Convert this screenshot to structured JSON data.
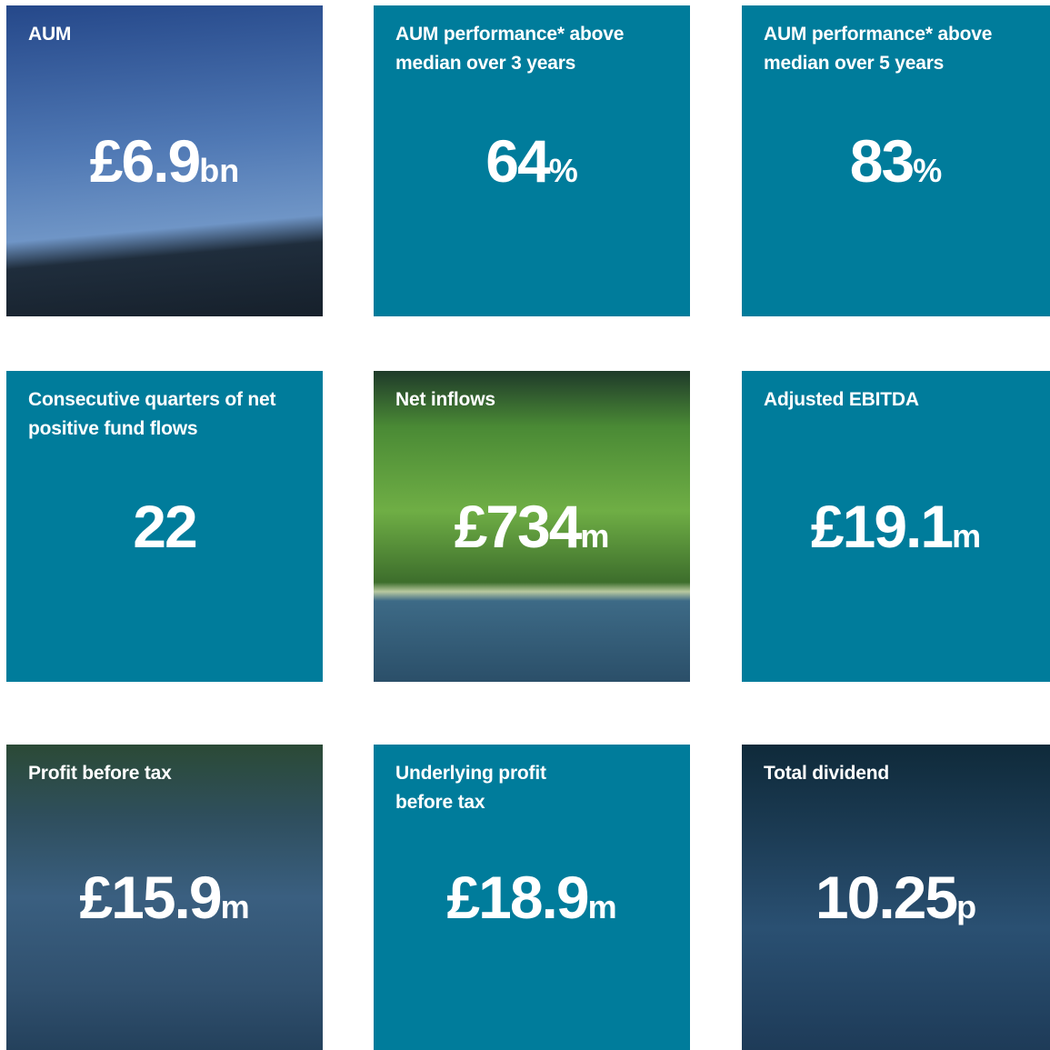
{
  "tiles": [
    {
      "label": "AUM",
      "value": "£6.9",
      "unit": "bn"
    },
    {
      "label": "AUM performance* above median over 3 years",
      "value": "64",
      "unit": "%"
    },
    {
      "label": "AUM performance* above median over 5 years",
      "value": "83",
      "unit": "%"
    },
    {
      "label": "Consecutive quarters of net positive fund flows",
      "value": "22",
      "unit": null
    },
    {
      "label": "Net inflows",
      "value": "£734",
      "unit": "m"
    },
    {
      "label": "Adjusted EBITDA",
      "value": "£19.1",
      "unit": "m"
    },
    {
      "label": "Profit before tax",
      "value": "£15.9",
      "unit": "m"
    },
    {
      "label": "Underlying profit before tax",
      "value": "£18.9",
      "unit": "m"
    },
    {
      "label": "Total dividend",
      "value": "10.25",
      "unit": "p"
    }
  ]
}
